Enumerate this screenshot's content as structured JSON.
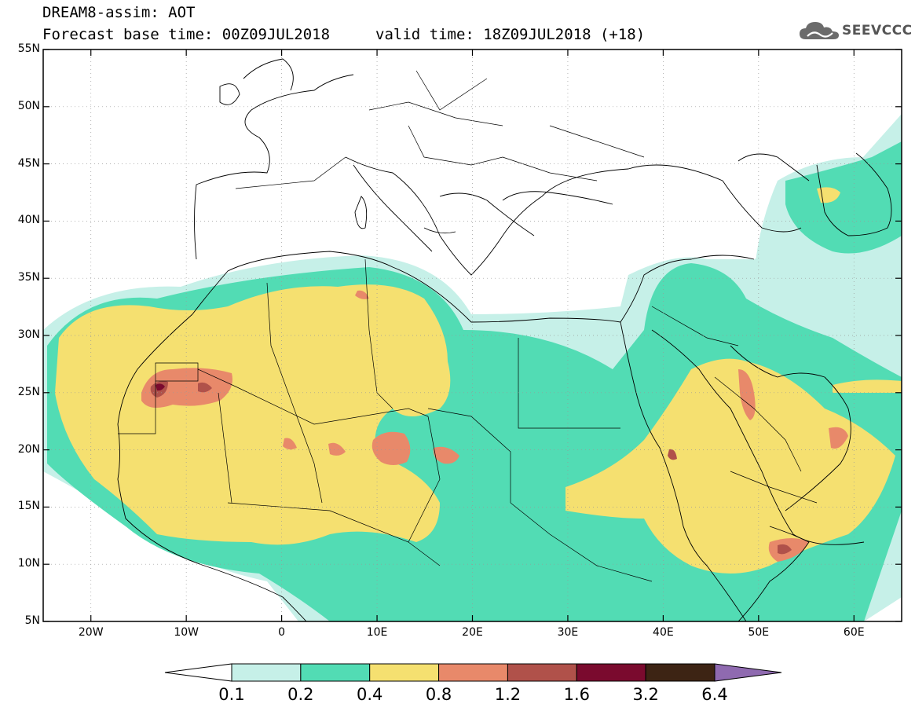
{
  "title": {
    "line1": "DREAM8-assim: AOT",
    "line2": "Forecast base time: 00Z09JUL2018",
    "valid": "valid time: 18Z09JUL2018 (+18)"
  },
  "logo": {
    "text": "SEEVCCC",
    "icon": "cloud-logo-icon"
  },
  "chart_data": {
    "type": "heatmap",
    "x_ticks": [
      "20W",
      "10W",
      "0",
      "10E",
      "20E",
      "30E",
      "40E",
      "50E",
      "60E"
    ],
    "y_ticks": [
      "55N",
      "50N",
      "45N",
      "40N",
      "35N",
      "30N",
      "25N",
      "20N",
      "15N",
      "10N",
      "5N"
    ],
    "xlim": [
      -25,
      65
    ],
    "ylim": [
      5,
      55
    ],
    "grid": true,
    "colorbar": {
      "levels": [
        "0.1",
        "0.2",
        "0.4",
        "0.8",
        "1.2",
        "1.6",
        "3.2",
        "6.4"
      ],
      "colors": [
        "#ffffff",
        "#c6f0e8",
        "#52dcb4",
        "#f5e070",
        "#e8896a",
        "#b0514a",
        "#7a0a2e",
        "#3d2414",
        "#8f6ab0"
      ]
    }
  }
}
